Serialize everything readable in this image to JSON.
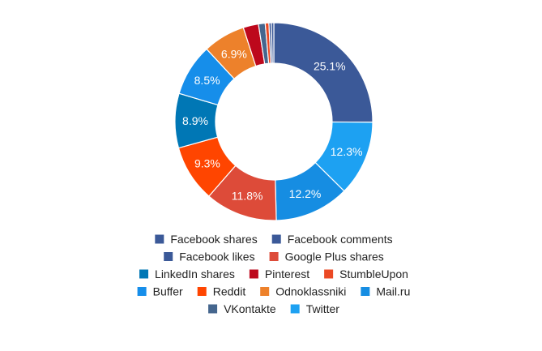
{
  "chart_data": {
    "type": "pie",
    "donut": true,
    "legend_position": "bottom",
    "slices": [
      {
        "name": "Facebook shares",
        "value": 25.1,
        "color": "#3b5998",
        "label": "25.1%"
      },
      {
        "name": "Twitter",
        "value": 12.3,
        "color": "#1da1f2",
        "label": "12.3%"
      },
      {
        "name": "Mail.ru",
        "value": 12.2,
        "color": "#168de2",
        "label": "12.2%"
      },
      {
        "name": "Google Plus shares",
        "value": 11.8,
        "color": "#dd4b39",
        "label": "11.8%"
      },
      {
        "name": "Reddit",
        "value": 9.3,
        "color": "#ff4500",
        "label": "9.3%"
      },
      {
        "name": "LinkedIn shares",
        "value": 8.9,
        "color": "#0077b5",
        "label": "8.9%"
      },
      {
        "name": "Buffer",
        "value": 8.5,
        "color": "#168eea",
        "label": "8.5%"
      },
      {
        "name": "Odnoklassniki",
        "value": 6.9,
        "color": "#ed812b",
        "label": "6.9%"
      },
      {
        "name": "Pinterest",
        "value": 2.5,
        "color": "#bd081c",
        "label": ""
      },
      {
        "name": "VKontakte",
        "value": 1.1,
        "color": "#45668e",
        "label": ""
      },
      {
        "name": "StumbleUpon",
        "value": 0.6,
        "color": "#eb4924",
        "label": ""
      },
      {
        "name": "Facebook comments",
        "value": 0.4,
        "color": "#3b5998",
        "label": ""
      },
      {
        "name": "Facebook likes",
        "value": 0.4,
        "color": "#3b5998",
        "label": ""
      }
    ],
    "legend_rows": [
      [
        "Facebook shares",
        "Facebook comments"
      ],
      [
        "Facebook likes",
        "Google Plus shares"
      ],
      [
        "LinkedIn shares",
        "Pinterest",
        "StumbleUpon"
      ],
      [
        "Buffer",
        "Reddit",
        "Odnoklassniki",
        "Mail.ru"
      ],
      [
        "VKontakte",
        "Twitter"
      ]
    ]
  }
}
